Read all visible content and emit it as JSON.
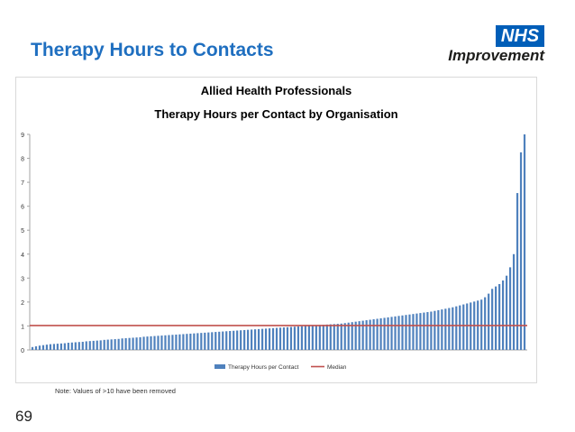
{
  "slide": {
    "title": "Therapy Hours to Contacts",
    "note": "Note: Values of >10 have been removed",
    "page_number": "69",
    "logo": {
      "box_text": "NHS",
      "text": "Improvement"
    }
  },
  "colors": {
    "bar": "#4f81bd",
    "median": "#c0504d",
    "title": "#1f6fc0"
  },
  "chart_data": {
    "type": "bar",
    "title_line1": "Allied Health Professionals",
    "title_line2": "Therapy Hours per Contact by Organisation",
    "ylim": [
      0,
      9
    ],
    "yticks": [
      0,
      1,
      2,
      3,
      4,
      5,
      6,
      7,
      8,
      9
    ],
    "median": 1.02,
    "legend": [
      "Therapy Hours per Contact",
      "Median"
    ],
    "values": [
      0.12,
      0.15,
      0.18,
      0.2,
      0.22,
      0.24,
      0.25,
      0.26,
      0.27,
      0.28,
      0.3,
      0.31,
      0.32,
      0.33,
      0.34,
      0.36,
      0.37,
      0.38,
      0.39,
      0.4,
      0.42,
      0.43,
      0.44,
      0.45,
      0.46,
      0.48,
      0.49,
      0.5,
      0.51,
      0.52,
      0.53,
      0.55,
      0.56,
      0.57,
      0.58,
      0.59,
      0.6,
      0.61,
      0.62,
      0.63,
      0.64,
      0.65,
      0.66,
      0.67,
      0.68,
      0.69,
      0.7,
      0.71,
      0.72,
      0.73,
      0.74,
      0.75,
      0.76,
      0.77,
      0.78,
      0.79,
      0.8,
      0.81,
      0.82,
      0.83,
      0.84,
      0.85,
      0.86,
      0.87,
      0.88,
      0.89,
      0.9,
      0.91,
      0.92,
      0.93,
      0.94,
      0.95,
      0.96,
      0.97,
      0.98,
      0.99,
      1.0,
      1.01,
      1.02,
      1.03,
      1.04,
      1.05,
      1.06,
      1.07,
      1.08,
      1.09,
      1.1,
      1.12,
      1.14,
      1.16,
      1.18,
      1.2,
      1.22,
      1.24,
      1.26,
      1.28,
      1.3,
      1.32,
      1.34,
      1.36,
      1.38,
      1.4,
      1.42,
      1.44,
      1.46,
      1.48,
      1.5,
      1.52,
      1.54,
      1.56,
      1.58,
      1.6,
      1.63,
      1.66,
      1.69,
      1.72,
      1.75,
      1.78,
      1.82,
      1.86,
      1.9,
      1.94,
      1.98,
      2.02,
      2.06,
      2.1,
      2.2,
      2.35,
      2.55,
      2.65,
      2.75,
      2.9,
      3.1,
      3.45,
      4.0,
      6.55,
      8.25,
      9.0
    ]
  }
}
